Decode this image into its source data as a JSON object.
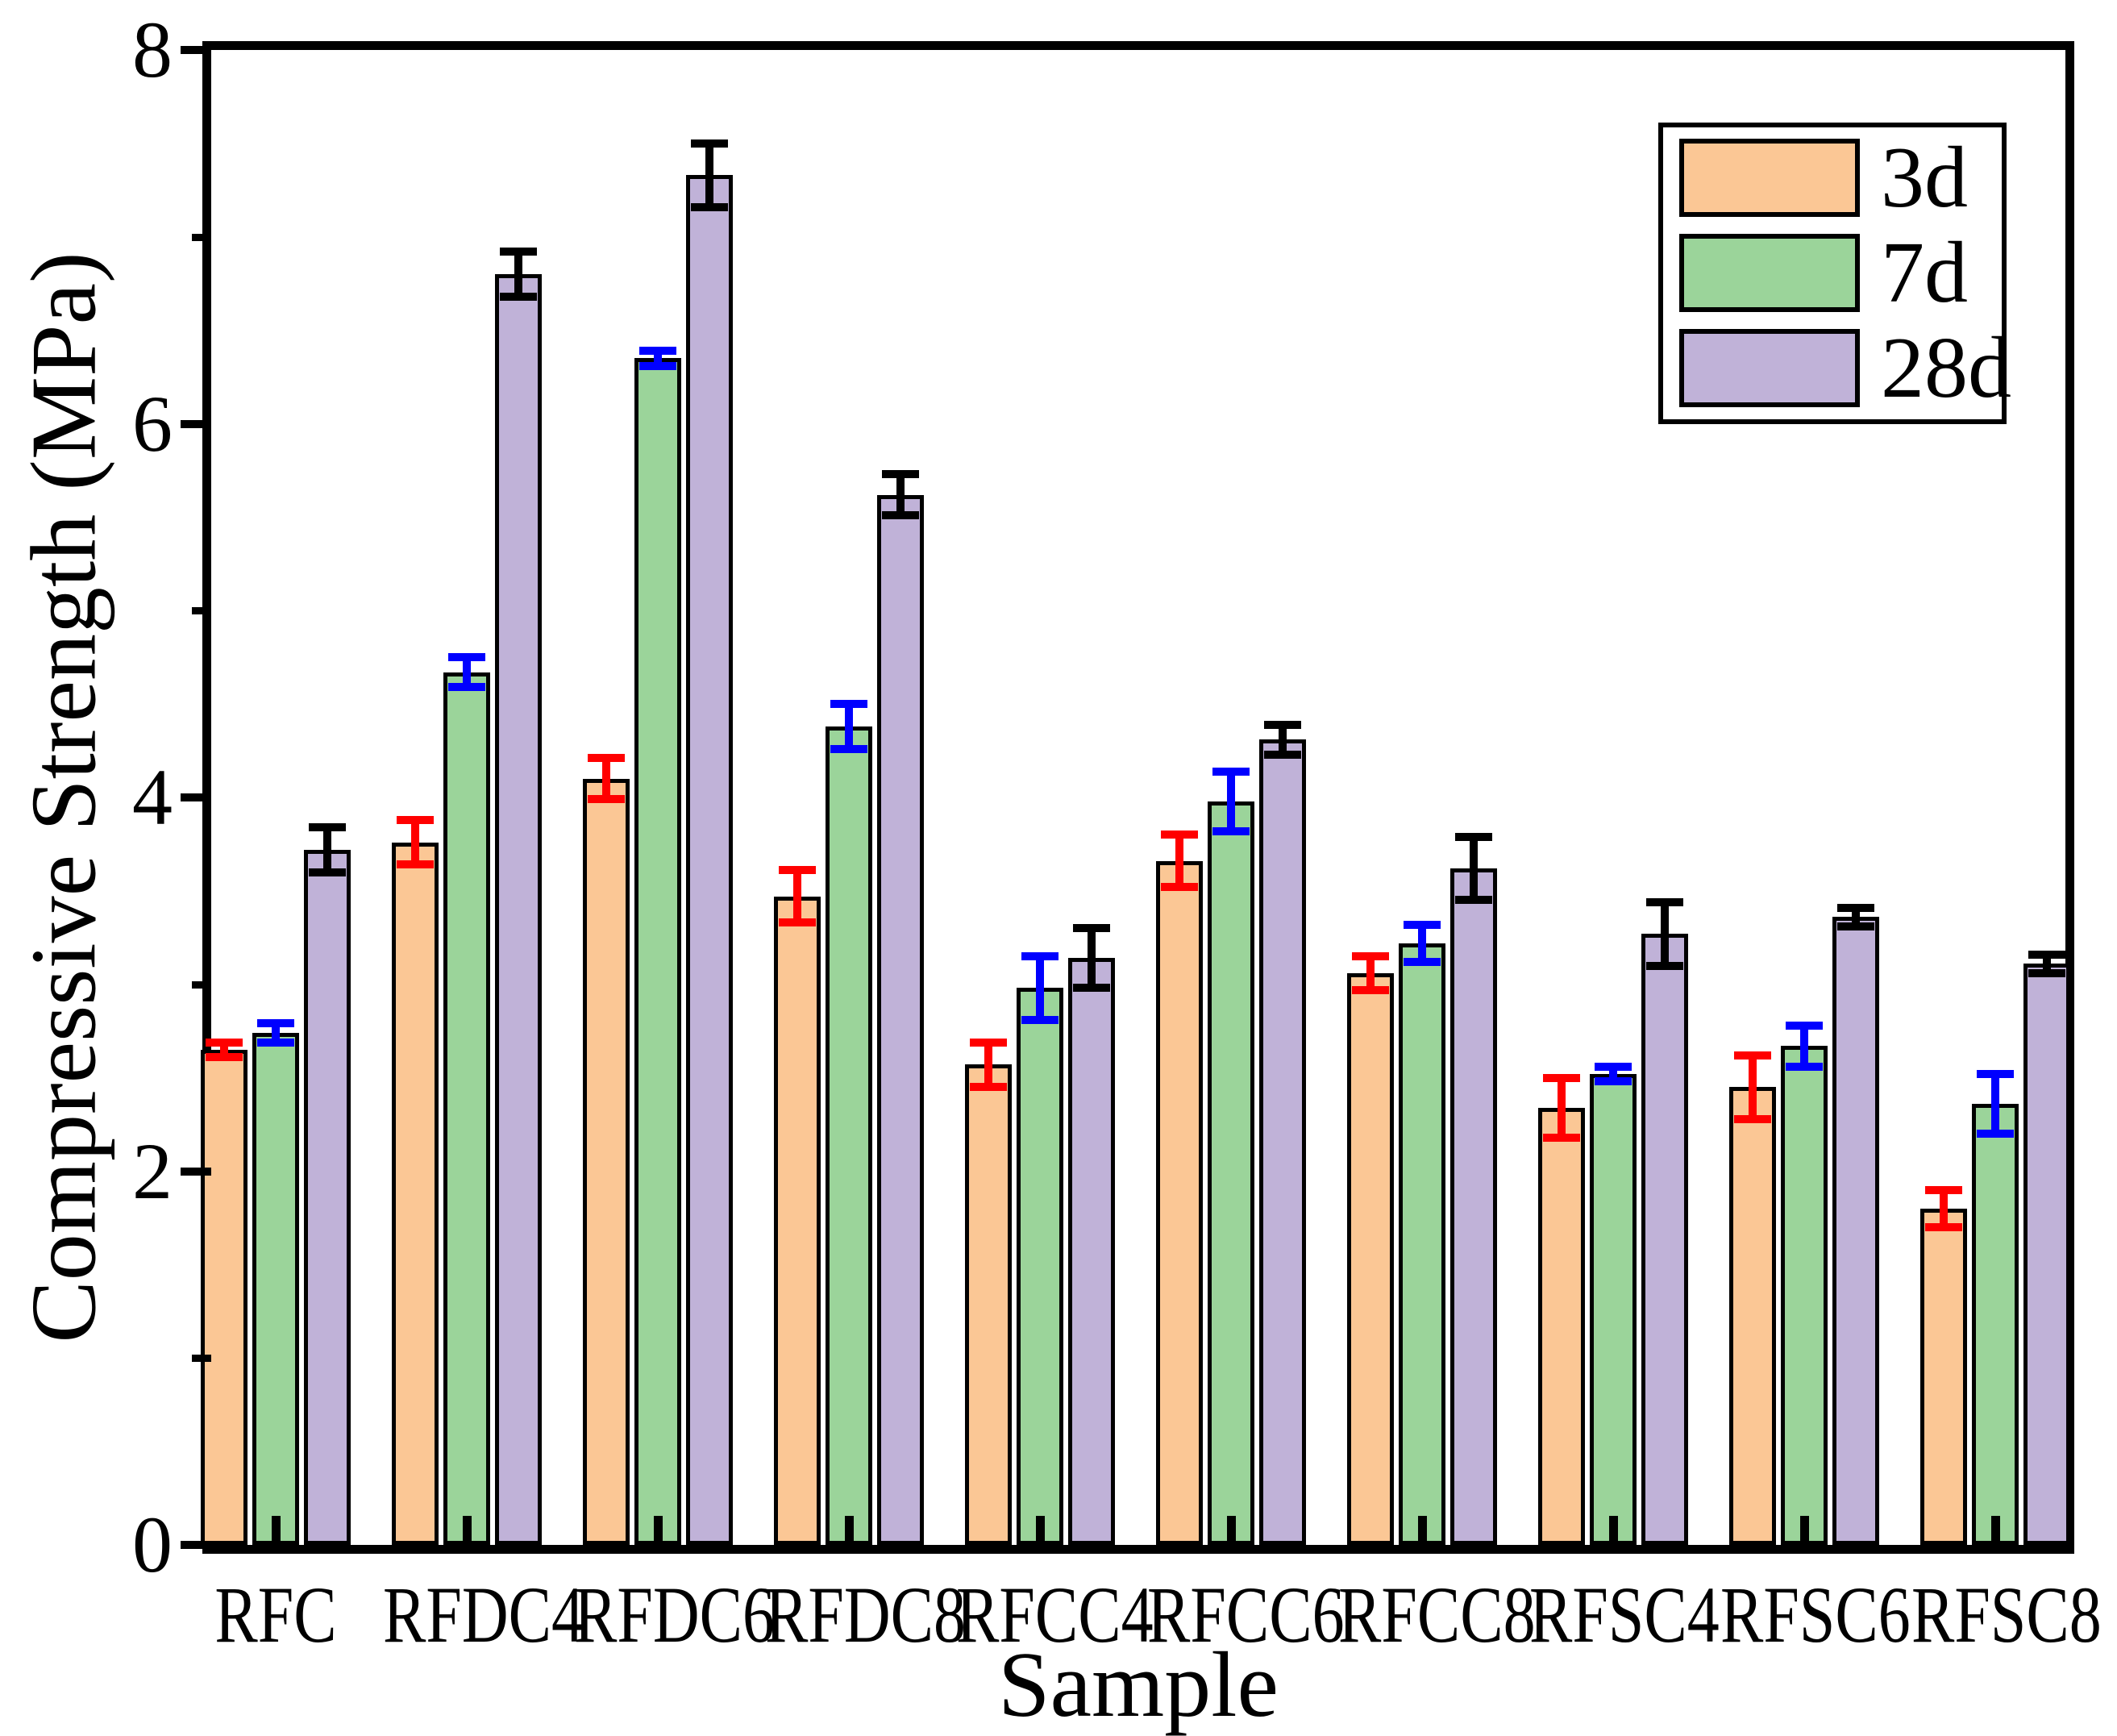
{
  "chart_data": {
    "type": "bar",
    "title": "",
    "xlabel": "Sample",
    "ylabel": "Compressive Strength (MPa)",
    "ylim": [
      0,
      8
    ],
    "ytick_labels": [
      "0",
      "2",
      "4",
      "6",
      "8"
    ],
    "yticks_major": [
      0,
      2,
      4,
      6,
      8
    ],
    "yticks_minor": [
      1,
      3,
      5,
      7
    ],
    "grid": false,
    "legend_position": "top-right-inside",
    "categories": [
      "RFC",
      "RFDC4",
      "RFDC6",
      "RFDC8",
      "RFCC4",
      "RFCC6",
      "RFCC8",
      "RFSC4",
      "RFSC6",
      "RFSC8"
    ],
    "series": [
      {
        "name": "3d",
        "color": "#FBC795",
        "error_color": "#FF0000",
        "values": [
          2.65,
          3.76,
          4.1,
          3.47,
          2.57,
          3.66,
          3.06,
          2.34,
          2.45,
          1.8
        ],
        "errors": [
          0.04,
          0.12,
          0.11,
          0.14,
          0.12,
          0.14,
          0.09,
          0.16,
          0.17,
          0.1
        ]
      },
      {
        "name": "7d",
        "color": "#9BD49A",
        "error_color": "#0000FF",
        "values": [
          2.74,
          4.67,
          6.35,
          4.38,
          2.98,
          3.98,
          3.22,
          2.52,
          2.67,
          2.36
        ],
        "errors": [
          0.05,
          0.08,
          0.04,
          0.12,
          0.17,
          0.16,
          0.1,
          0.04,
          0.11,
          0.16
        ]
      },
      {
        "name": "28d",
        "color": "#C0B2D8",
        "error_color": "#000000",
        "values": [
          3.72,
          6.8,
          7.33,
          5.62,
          3.14,
          4.31,
          3.62,
          3.27,
          3.36,
          3.11
        ],
        "errors": [
          0.12,
          0.12,
          0.17,
          0.11,
          0.16,
          0.08,
          0.17,
          0.17,
          0.05,
          0.05
        ]
      }
    ]
  },
  "colors": {
    "axis": "#000000",
    "background": "#FFFFFF"
  }
}
